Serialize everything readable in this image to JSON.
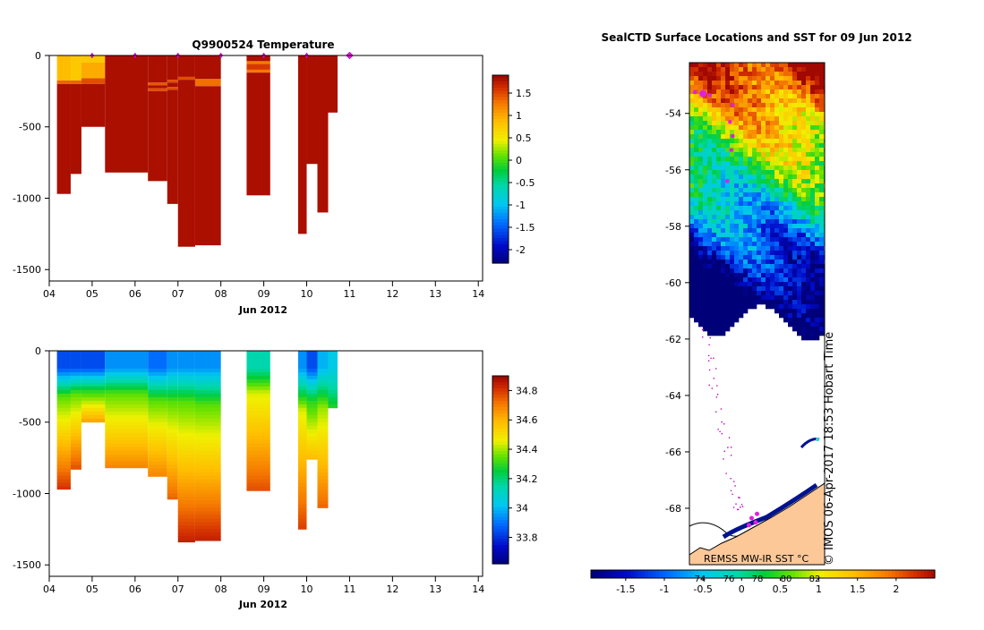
{
  "chart_data": [
    {
      "type": "heatmap",
      "title": "Q9900524  Temperature",
      "xlabel": "Jun 2012",
      "ylabel": "",
      "xticks": [
        "04",
        "05",
        "06",
        "07",
        "08",
        "09",
        "10",
        "11",
        "12",
        "13",
        "14"
      ],
      "xlim": [
        4,
        14.1
      ],
      "ylim": [
        -1580,
        0
      ],
      "yticks": [
        0,
        -500,
        -1000,
        -1500
      ],
      "colorbar_ticks": [
        1.5,
        1,
        0.5,
        0,
        -0.5,
        -1,
        -1.5,
        -2
      ],
      "colorbar_range": [
        -2.3,
        1.9
      ],
      "profile_markers": [
        5.0,
        6.0,
        7.0,
        8.0,
        9.0,
        10.0,
        11.0
      ],
      "highlight_marker": 11.0,
      "profiles": [
        {
          "x0": 4.18,
          "x1": 4.5,
          "depth": 970,
          "layers": [
            [
              0,
              175,
              0.9
            ],
            [
              175,
              200,
              1.4
            ],
            [
              200,
              970,
              1.85
            ]
          ]
        },
        {
          "x0": 4.5,
          "x1": 4.75,
          "depth": 830,
          "layers": [
            [
              0,
              175,
              0.8
            ],
            [
              175,
              200,
              1.4
            ],
            [
              200,
              830,
              1.85
            ]
          ]
        },
        {
          "x0": 4.75,
          "x1": 5.3,
          "depth": 500,
          "layers": [
            [
              0,
              50,
              0.8
            ],
            [
              50,
              160,
              1.0
            ],
            [
              160,
              200,
              1.5
            ],
            [
              200,
              500,
              1.85
            ]
          ]
        },
        {
          "x0": 5.3,
          "x1": 6.3,
          "depth": 820,
          "layers": [
            [
              0,
              820,
              1.85
            ]
          ]
        },
        {
          "x0": 6.3,
          "x1": 6.75,
          "depth": 880,
          "layers": [
            [
              0,
              190,
              1.85
            ],
            [
              190,
              210,
              1.45
            ],
            [
              210,
              230,
              1.85
            ],
            [
              230,
              250,
              1.5
            ],
            [
              250,
              880,
              1.85
            ]
          ]
        },
        {
          "x0": 6.75,
          "x1": 7.0,
          "depth": 1040,
          "layers": [
            [
              0,
              170,
              1.85
            ],
            [
              170,
              190,
              1.5
            ],
            [
              190,
              220,
              1.85
            ],
            [
              220,
              240,
              1.5
            ],
            [
              240,
              1040,
              1.85
            ]
          ]
        },
        {
          "x0": 7.0,
          "x1": 7.4,
          "depth": 1340,
          "layers": [
            [
              0,
              150,
              1.85
            ],
            [
              150,
              170,
              1.5
            ],
            [
              170,
              1340,
              1.85
            ]
          ]
        },
        {
          "x0": 7.4,
          "x1": 8.0,
          "depth": 1330,
          "layers": [
            [
              0,
              165,
              1.85
            ],
            [
              165,
              215,
              1.35
            ],
            [
              215,
              1330,
              1.85
            ]
          ]
        },
        {
          "x0": 8.6,
          "x1": 9.15,
          "depth": 980,
          "layers": [
            [
              0,
              40,
              1.85
            ],
            [
              40,
              60,
              1.3
            ],
            [
              60,
              100,
              1.6
            ],
            [
              100,
              120,
              1.3
            ],
            [
              120,
              980,
              1.85
            ]
          ]
        },
        {
          "x0": 9.8,
          "x1": 10.0,
          "depth": 1250,
          "layers": [
            [
              0,
              1250,
              1.85
            ]
          ]
        },
        {
          "x0": 10.0,
          "x1": 10.25,
          "depth": 760,
          "layers": [
            [
              0,
              760,
              1.85
            ]
          ]
        },
        {
          "x0": 10.25,
          "x1": 10.5,
          "depth": 1100,
          "layers": [
            [
              0,
              1100,
              1.85
            ]
          ]
        },
        {
          "x0": 10.5,
          "x1": 10.72,
          "depth": 400,
          "layers": [
            [
              0,
              400,
              1.85
            ]
          ]
        }
      ]
    },
    {
      "type": "heatmap",
      "title": "",
      "xlabel": "Jun 2012",
      "ylabel": "",
      "xticks": [
        "04",
        "05",
        "06",
        "07",
        "08",
        "09",
        "10",
        "11",
        "12",
        "13",
        "14"
      ],
      "xlim": [
        4,
        14.1
      ],
      "ylim": [
        -1580,
        0
      ],
      "yticks": [
        0,
        -500,
        -1000,
        -1500
      ],
      "colorbar_ticks": [
        34.8,
        34.6,
        34.4,
        34.2,
        34,
        33.8
      ],
      "colorbar_range": [
        33.62,
        34.9
      ],
      "profiles": [
        {
          "x0": 4.18,
          "x1": 4.5,
          "depth": 970,
          "v_surface": 33.85,
          "v_mid": 34.35,
          "v_deep": 34.82,
          "z_mid": 320
        },
        {
          "x0": 4.5,
          "x1": 4.75,
          "depth": 830,
          "v_surface": 33.85,
          "v_mid": 34.35,
          "v_deep": 34.78,
          "z_mid": 300
        },
        {
          "x0": 4.75,
          "x1": 5.3,
          "depth": 500,
          "v_surface": 33.85,
          "v_mid": 34.3,
          "v_deep": 34.65,
          "z_mid": 280
        },
        {
          "x0": 5.3,
          "x1": 6.3,
          "depth": 820,
          "v_surface": 33.95,
          "v_mid": 34.35,
          "v_deep": 34.7,
          "z_mid": 300
        },
        {
          "x0": 6.3,
          "x1": 6.75,
          "depth": 880,
          "v_surface": 33.9,
          "v_mid": 34.35,
          "v_deep": 34.7,
          "z_mid": 350
        },
        {
          "x0": 6.75,
          "x1": 7.0,
          "depth": 1040,
          "v_surface": 33.95,
          "v_mid": 34.35,
          "v_deep": 34.75,
          "z_mid": 360
        },
        {
          "x0": 7.0,
          "x1": 7.4,
          "depth": 1340,
          "v_surface": 33.95,
          "v_mid": 34.35,
          "v_deep": 34.85,
          "z_mid": 360
        },
        {
          "x0": 7.4,
          "x1": 8.0,
          "depth": 1330,
          "v_surface": 33.95,
          "v_mid": 34.35,
          "v_deep": 34.85,
          "z_mid": 380
        },
        {
          "x0": 8.6,
          "x1": 9.15,
          "depth": 980,
          "v_surface": 34.15,
          "v_mid": 34.45,
          "v_deep": 34.78,
          "z_mid": 300
        },
        {
          "x0": 9.8,
          "x1": 10.0,
          "depth": 1250,
          "v_surface": 33.95,
          "v_mid": 34.45,
          "v_deep": 34.8,
          "z_mid": 420
        },
        {
          "x0": 10.0,
          "x1": 10.25,
          "depth": 760,
          "v_surface": 33.85,
          "v_mid": 34.3,
          "v_deep": 34.6,
          "z_mid": 350
        },
        {
          "x0": 10.25,
          "x1": 10.5,
          "depth": 1100,
          "v_surface": 34.0,
          "v_mid": 34.4,
          "v_deep": 34.75,
          "z_mid": 400
        },
        {
          "x0": 10.5,
          "x1": 10.72,
          "depth": 400,
          "v_surface": 34.05,
          "v_mid": 34.15,
          "v_deep": 34.3,
          "z_mid": 250
        }
      ]
    },
    {
      "type": "heatmap",
      "title": "SealCTD Surface Locations and SST for 09 Jun 2012",
      "ylim": [
        -70,
        -52.2
      ],
      "yticks": [
        -54,
        -56,
        -58,
        -60,
        -62,
        -64,
        -66,
        -68
      ],
      "colorbar_ticks": [
        -1.5,
        -1,
        -0.5,
        0,
        0.5,
        1,
        1.5,
        2
      ],
      "colorbar_range": [
        -1.95,
        2.5
      ],
      "colorbar_overlay_labels": [
        "74",
        "76",
        "78",
        "80",
        "82"
      ],
      "sst_source_label": "REMSS MW-IR SST °C",
      "watermark": "© IMOS 06-Apr-2017 18:53 Hobart Time",
      "ice_edge_lat": -61.2,
      "seal_track": [
        [
          0.2,
          -53.25
        ],
        [
          0.5,
          -53.3
        ],
        [
          0.75,
          -53.35
        ],
        [
          1.6,
          -53.7
        ],
        [
          1.5,
          -54.3
        ],
        [
          1.6,
          -54.8
        ],
        [
          1.55,
          -55.3
        ],
        [
          1.4,
          -56.4
        ]
      ]
    }
  ]
}
